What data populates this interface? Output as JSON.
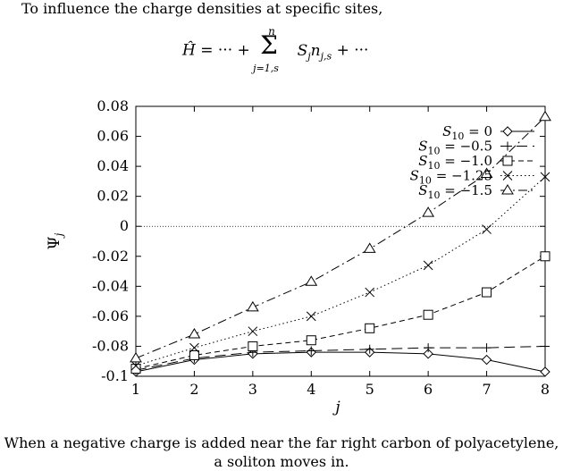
{
  "intro_text": "To influence the charge densities at specific sites,",
  "equation": "Ĥ = ··· + Σ S_j n_{j,s} + ···",
  "caption_line1": "When a negative charge is added near the far right carbon of polyacetylene,",
  "caption_line2": "a soliton moves in.",
  "chart_data": {
    "type": "line",
    "xlabel": "j",
    "ylabel": "Ψ_j",
    "xlim": [
      1,
      8
    ],
    "ylim": [
      -0.1,
      0.08
    ],
    "x": [
      1,
      2,
      3,
      4,
      5,
      6,
      7,
      8
    ],
    "xticks": [
      "1",
      "2",
      "3",
      "4",
      "5",
      "6",
      "7",
      "8"
    ],
    "yticks": [
      "0.08",
      "0.06",
      "0.04",
      "0.02",
      "0",
      "-0.02",
      "-0.04",
      "-0.06",
      "-0.08",
      "-0.1"
    ],
    "grid": false,
    "legend_position": "top-right",
    "zero_line": true,
    "series": [
      {
        "name": "S10 = 0",
        "marker": "diamond",
        "dash": "solid",
        "values": [
          -0.097,
          -0.089,
          -0.085,
          -0.084,
          -0.084,
          -0.085,
          -0.089,
          -0.097
        ]
      },
      {
        "name": "S10 = −0.5",
        "marker": "plus",
        "dash": "long-dash",
        "values": [
          -0.096,
          -0.088,
          -0.084,
          -0.083,
          -0.082,
          -0.081,
          -0.081,
          -0.08
        ]
      },
      {
        "name": "S10 = −1.0",
        "marker": "square",
        "dash": "dash",
        "values": [
          -0.095,
          -0.086,
          -0.08,
          -0.076,
          -0.068,
          -0.059,
          -0.044,
          -0.02
        ]
      },
      {
        "name": "S10 = −1.25",
        "marker": "cross",
        "dash": "dot",
        "values": [
          -0.093,
          -0.081,
          -0.07,
          -0.06,
          -0.044,
          -0.026,
          -0.002,
          0.033
        ]
      },
      {
        "name": "S10 = −1.5",
        "marker": "triangle",
        "dash": "dash-dot",
        "values": [
          -0.088,
          -0.072,
          -0.054,
          -0.037,
          -0.015,
          0.009,
          0.035,
          0.073
        ]
      }
    ]
  }
}
